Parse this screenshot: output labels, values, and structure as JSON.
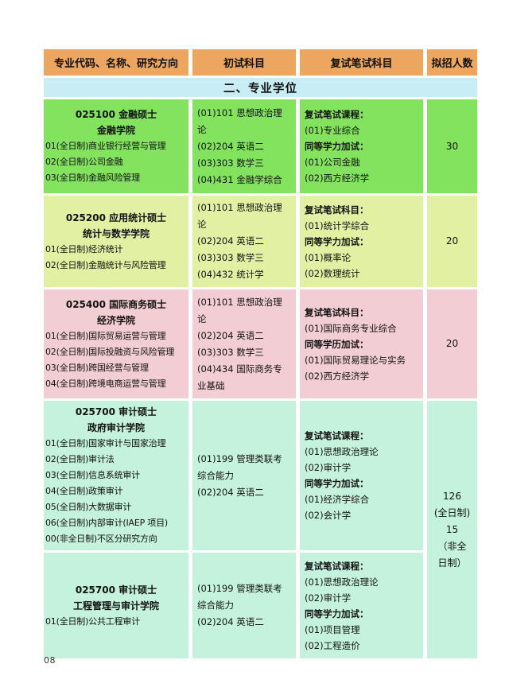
{
  "page_number": "08",
  "table": {
    "columns": [
      "专业代码、名称、研究方向",
      "初试科目",
      "复试笔试科目",
      "拟招人数"
    ],
    "section_title": "二、专业学位",
    "colors": {
      "header_bg": "#eca65f",
      "section_bg": "#c9edf4",
      "text": "#111111"
    },
    "rows": [
      {
        "bg": "#83e25e",
        "min_height": 118,
        "program_title": [
          "025100 金融硕士",
          "金融学院"
        ],
        "directions": [
          "01(全日制)商业银行经营与管理",
          "02(全日制)公司金融",
          "03(全日制)金融风险管理"
        ],
        "initial_subjects": [
          "(01)101 思想政治理论",
          "(02)204 英语二",
          "(03)303 数学三",
          "(04)431 金融学综合"
        ],
        "retest_lines": [
          {
            "text": "复试笔试课程：",
            "bold": true
          },
          {
            "text": "(01)专业综合",
            "bold": false
          },
          {
            "text": "同等学力加试：",
            "bold": true
          },
          {
            "text": "(01)公司金融",
            "bold": false
          },
          {
            "text": "(02)西方经济学",
            "bold": false
          }
        ],
        "quota_lines": [
          "30"
        ],
        "quota_rowspan": 1
      },
      {
        "bg": "#e1f0a2",
        "min_height": 98,
        "program_title": [
          "025200 应用统计硕士",
          "统计与数学学院"
        ],
        "directions": [
          "01(全日制)经济统计",
          "02(全日制)金融统计与风险管理"
        ],
        "initial_subjects": [
          "(01)101 思想政治理论",
          "(02)204 英语二",
          "(03)303 数学三",
          "(04)432 统计学"
        ],
        "retest_lines": [
          {
            "text": "复试笔试科目：",
            "bold": true
          },
          {
            "text": "(01)统计学综合",
            "bold": false
          },
          {
            "text": "同等学力加试：",
            "bold": true
          },
          {
            "text": "(01)概率论",
            "bold": false
          },
          {
            "text": "(02)数理统计",
            "bold": false
          }
        ],
        "quota_lines": [
          "20"
        ],
        "quota_rowspan": 1
      },
      {
        "bg": "#f2cdd4",
        "min_height": 137,
        "program_title": [
          "025400 国际商务硕士",
          "经济学院"
        ],
        "directions": [
          "01(全日制)国际贸易运营与管理",
          "02(全日制)国际投融资与风险管理",
          "03(全日制)跨国经营与管理",
          "04(全日制)跨境电商运营与管理"
        ],
        "initial_subjects": [
          "(01)101 思想政治理论",
          "(02)204 英语二",
          "(03)303 数学三",
          "(04)434 国际商务专业基础"
        ],
        "retest_lines": [
          {
            "text": "复试笔试科目：",
            "bold": true
          },
          {
            "text": "(01)国际商务专业综合",
            "bold": false
          },
          {
            "text": "同等学历加试：",
            "bold": true
          },
          {
            "text": "(01)国际贸易理论与实务",
            "bold": false
          },
          {
            "text": "(02)西方经济学",
            "bold": false
          }
        ],
        "quota_lines": [
          "20"
        ],
        "quota_rowspan": 1
      },
      {
        "bg": "#c5f2dd",
        "min_height": 187,
        "program_title": [
          "025700 审计硕士",
          "政府审计学院"
        ],
        "directions": [
          "01(全日制)国家审计与国家治理",
          "02(全日制)审计法",
          "03(全日制)信息系统审计",
          "04(全日制)政策审计",
          "05(全日制)大数据审计",
          "06(全日制)内部审计(IAEP 项目)",
          "00(非全日制)不区分研究方向"
        ],
        "initial_subjects": [
          "(01)199 管理类联考综合能力",
          "(02)204 英语二"
        ],
        "retest_lines": [
          {
            "text": "复试笔试课程：",
            "bold": true
          },
          {
            "text": "(01)思想政治理论",
            "bold": false
          },
          {
            "text": "(02)审计学",
            "bold": false
          },
          {
            "text": "同等学力加试：",
            "bold": true
          },
          {
            "text": "(01)经济学综合",
            "bold": false
          },
          {
            "text": "(02)会计学",
            "bold": false
          }
        ],
        "quota_lines": [
          "126",
          "(全日制)",
          "15",
          "（非全",
          "日制）"
        ],
        "quota_rowspan": 2
      },
      {
        "bg": "#c5f2dd",
        "min_height": 133,
        "program_title": [
          "025700 审计硕士",
          "工程管理与审计学院"
        ],
        "directions": [
          "01(全日制)公共工程审计"
        ],
        "initial_subjects": [
          "(01)199 管理类联考综合能力",
          "(02)204 英语二"
        ],
        "retest_lines": [
          {
            "text": "复试笔试课程：",
            "bold": true
          },
          {
            "text": "(01)思想政治理论",
            "bold": false
          },
          {
            "text": "(02)审计学",
            "bold": false
          },
          {
            "text": "同等学力加试：",
            "bold": true
          },
          {
            "text": "(01)项目管理",
            "bold": false
          },
          {
            "text": "(02)工程造价",
            "bold": false
          }
        ],
        "quota_lines": null,
        "quota_rowspan": 0
      }
    ]
  }
}
